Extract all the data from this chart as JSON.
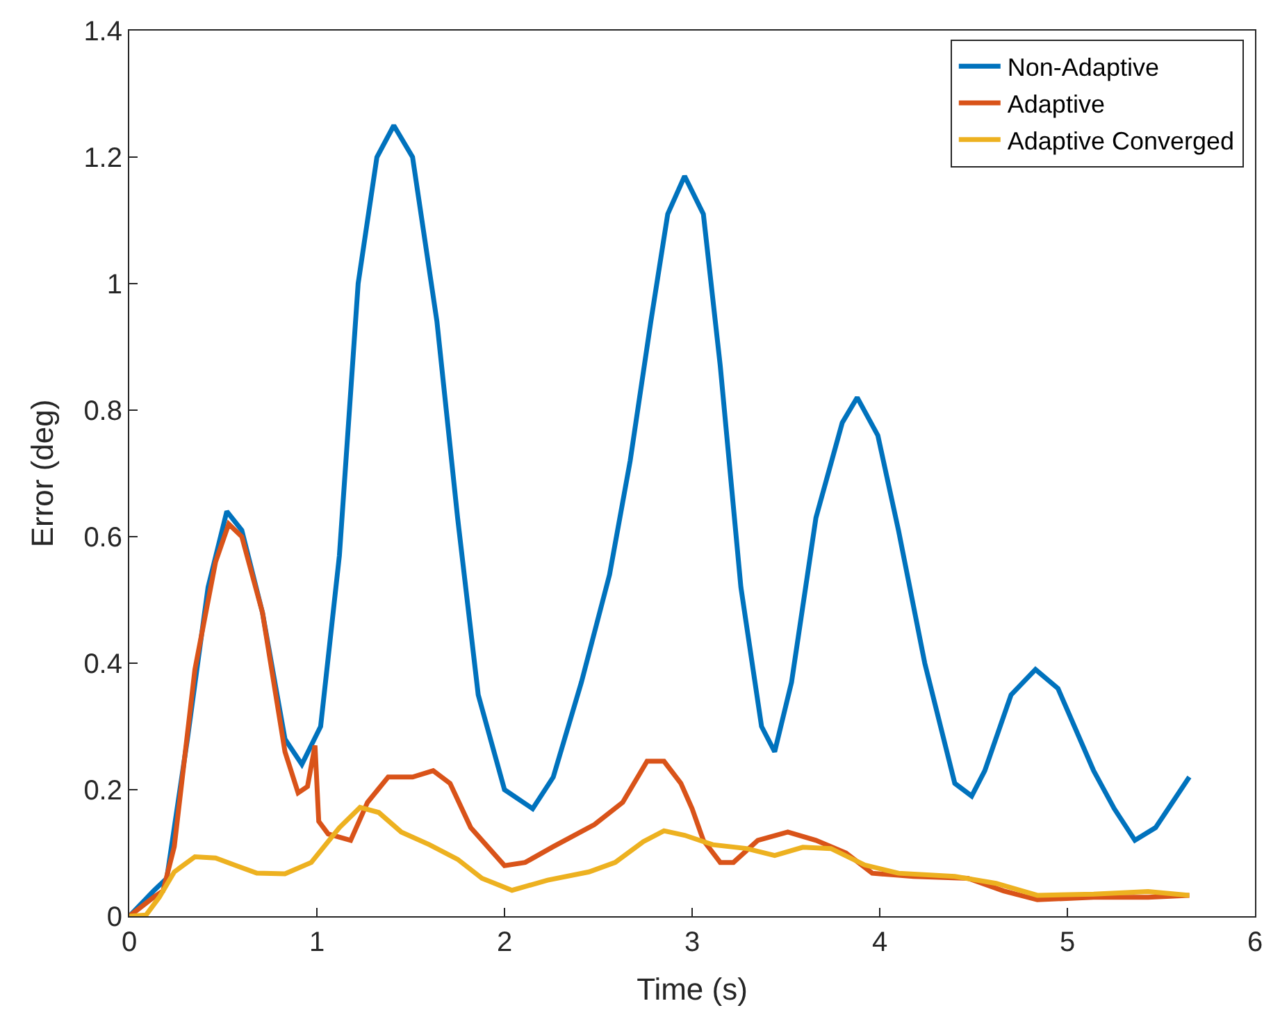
{
  "chart_data": {
    "type": "line",
    "xlabel": "Time (s)",
    "ylabel": "Error (deg)",
    "xlim": [
      0,
      6
    ],
    "xticks": [
      0,
      1,
      2,
      3,
      4,
      5,
      6
    ],
    "ylim": [
      0,
      1.4
    ],
    "yticks": [
      0,
      0.2,
      0.4,
      0.6,
      0.8,
      1,
      1.2,
      1.4
    ],
    "legend": "top right",
    "line_style": "solid",
    "marker": "none",
    "series": [
      {
        "name": "Non-Adaptive",
        "color": "#0072bd",
        "x": [
          0,
          0.13,
          0.2,
          0.31,
          0.42,
          0.52,
          0.6,
          0.71,
          0.83,
          0.92,
          1.02,
          1.12,
          1.22,
          1.32,
          1.41,
          1.51,
          1.64,
          1.75,
          1.86,
          2.0,
          2.15,
          2.26,
          2.41,
          2.56,
          2.67,
          2.78,
          2.87,
          2.96,
          3.06,
          3.15,
          3.26,
          3.37,
          3.44,
          3.53,
          3.66,
          3.8,
          3.88,
          3.99,
          4.1,
          4.24,
          4.4,
          4.49,
          4.56,
          4.7,
          4.83,
          4.95,
          5.14,
          5.25,
          5.36,
          5.47,
          5.56,
          5.65
        ],
        "values": [
          0,
          0.04,
          0.06,
          0.28,
          0.52,
          0.64,
          0.61,
          0.48,
          0.28,
          0.24,
          0.3,
          0.57,
          1.0,
          1.2,
          1.25,
          1.2,
          0.94,
          0.63,
          0.35,
          0.2,
          0.17,
          0.22,
          0.37,
          0.54,
          0.72,
          0.94,
          1.11,
          1.17,
          1.11,
          0.87,
          0.52,
          0.3,
          0.26,
          0.37,
          0.63,
          0.78,
          0.82,
          0.76,
          0.61,
          0.4,
          0.21,
          0.19,
          0.23,
          0.35,
          0.39,
          0.36,
          0.23,
          0.17,
          0.12,
          0.14,
          0.18,
          0.22
        ]
      },
      {
        "name": "Adaptive",
        "color": "#d95319",
        "x": [
          0,
          0.13,
          0.18,
          0.24,
          0.35,
          0.46,
          0.53,
          0.6,
          0.71,
          0.83,
          0.9,
          0.95,
          0.99,
          1.01,
          1.06,
          1.18,
          1.27,
          1.38,
          1.51,
          1.62,
          1.71,
          1.82,
          2.0,
          2.11,
          2.26,
          2.48,
          2.63,
          2.76,
          2.85,
          2.94,
          3.0,
          3.06,
          3.15,
          3.22,
          3.35,
          3.51,
          3.66,
          3.82,
          3.96,
          4.18,
          4.47,
          4.66,
          4.84,
          5.14,
          5.43,
          5.65
        ],
        "values": [
          0,
          0.03,
          0.04,
          0.11,
          0.39,
          0.56,
          0.62,
          0.6,
          0.48,
          0.26,
          0.195,
          0.205,
          0.27,
          0.15,
          0.13,
          0.12,
          0.18,
          0.22,
          0.22,
          0.23,
          0.21,
          0.14,
          0.08,
          0.085,
          0.11,
          0.145,
          0.18,
          0.245,
          0.245,
          0.21,
          0.17,
          0.12,
          0.085,
          0.085,
          0.12,
          0.133,
          0.12,
          0.1,
          0.068,
          0.063,
          0.06,
          0.04,
          0.026,
          0.03,
          0.03,
          0.033
        ]
      },
      {
        "name": "Adaptive Converged",
        "color": "#edb120",
        "x": [
          0,
          0.09,
          0.16,
          0.24,
          0.35,
          0.46,
          0.57,
          0.68,
          0.83,
          0.97,
          1.12,
          1.23,
          1.33,
          1.45,
          1.6,
          1.75,
          1.88,
          2.04,
          2.23,
          2.45,
          2.59,
          2.74,
          2.85,
          2.96,
          3.11,
          3.29,
          3.44,
          3.59,
          3.74,
          3.92,
          4.1,
          4.4,
          4.62,
          4.84,
          5.14,
          5.43,
          5.65
        ],
        "values": [
          0,
          0.002,
          0.03,
          0.07,
          0.094,
          0.092,
          0.08,
          0.068,
          0.067,
          0.085,
          0.14,
          0.172,
          0.164,
          0.133,
          0.113,
          0.09,
          0.06,
          0.041,
          0.057,
          0.07,
          0.085,
          0.118,
          0.135,
          0.128,
          0.113,
          0.107,
          0.096,
          0.109,
          0.107,
          0.081,
          0.068,
          0.063,
          0.052,
          0.033,
          0.035,
          0.039,
          0.033
        ]
      }
    ]
  }
}
